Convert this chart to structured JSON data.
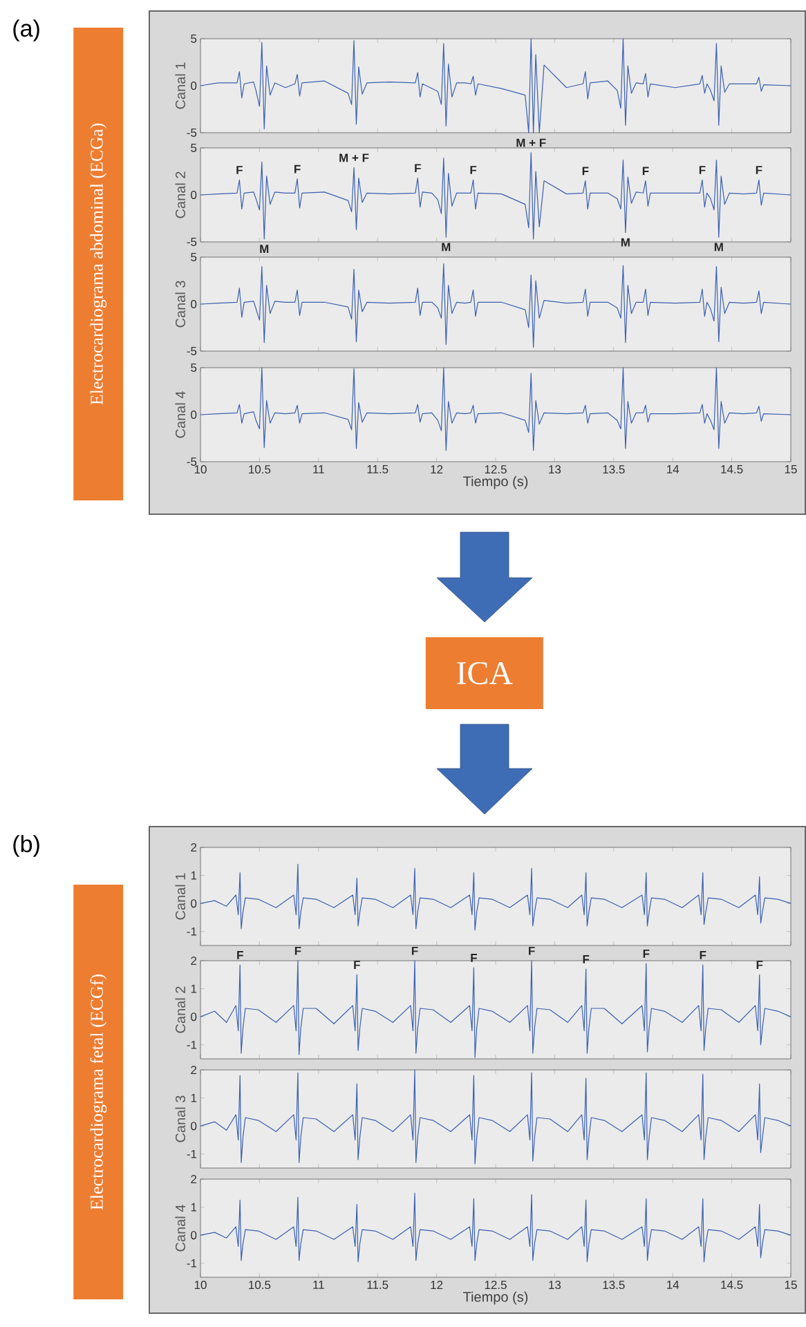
{
  "chart_data": [
    {
      "type": "line",
      "annotations": [
        "(a)",
        "Electrocardiograma abdominal (ECGa)"
      ],
      "ylabel": "Canal 1",
      "color": "#3a5fb0",
      "xlim": [
        10,
        15
      ],
      "ylim": [
        -5,
        5
      ],
      "xticks": [
        10,
        10.5,
        11,
        11.5,
        12,
        12.5,
        13,
        13.5,
        14,
        14.5,
        15
      ],
      "yticks": [
        -5,
        0,
        5
      ],
      "tick_labels": "y",
      "x": [
        10.0,
        10.15,
        10.31,
        10.33,
        10.35,
        10.37,
        10.45,
        10.47,
        10.5,
        10.52,
        10.54,
        10.56,
        10.59,
        10.63,
        10.72,
        10.8,
        10.82,
        10.84,
        10.86,
        11.05,
        11.25,
        11.28,
        11.3,
        11.32,
        11.34,
        11.37,
        11.41,
        11.6,
        11.82,
        11.84,
        11.86,
        11.88,
        11.96,
        12.01,
        12.04,
        12.06,
        12.08,
        12.1,
        12.13,
        12.17,
        12.24,
        12.29,
        12.31,
        12.33,
        12.35,
        12.55,
        12.75,
        12.78,
        12.8,
        12.82,
        12.84,
        12.87,
        12.91,
        13.1,
        13.24,
        13.26,
        13.28,
        13.3,
        13.45,
        13.53,
        13.56,
        13.58,
        13.6,
        13.62,
        13.65,
        13.69,
        13.75,
        13.77,
        13.79,
        13.81,
        14.02,
        14.23,
        14.25,
        14.27,
        14.29,
        14.32,
        14.35,
        14.37,
        14.39,
        14.41,
        14.44,
        14.48,
        14.6,
        14.71,
        14.73,
        14.75,
        14.77,
        15.0
      ],
      "values": [
        0,
        0.3,
        0.3,
        1.5,
        -1.3,
        0.2,
        0.4,
        -0.5,
        -2.2,
        4.6,
        -4.6,
        2.1,
        -1,
        0.3,
        -0.2,
        0.2,
        1.2,
        -1.1,
        0.3,
        0.5,
        -0.8,
        -2,
        4.8,
        -4.1,
        2,
        -0.9,
        0.3,
        0.4,
        0.3,
        1.4,
        -1.2,
        0.2,
        -0.3,
        -0.6,
        -2,
        4.5,
        -4.3,
        2.3,
        -1.2,
        0.3,
        0.3,
        0.2,
        1,
        -1,
        0.2,
        -0.3,
        -1,
        -5,
        5,
        -5,
        3.3,
        -5,
        2.2,
        -0.2,
        0.2,
        1.5,
        -1.4,
        0.3,
        0.5,
        -0.5,
        -2.4,
        5,
        -4.2,
        2.1,
        -0.8,
        0.3,
        0.2,
        1.3,
        -1.2,
        0.2,
        -0.2,
        0.2,
        1.1,
        -0.8,
        0.2,
        -0.5,
        -1.6,
        4.5,
        -4.2,
        2.1,
        -0.7,
        0.2,
        0.2,
        0.2,
        0.9,
        -0.6,
        0.1,
        0
      ]
    },
    {
      "type": "line",
      "ylabel": "Canal 2",
      "color": "#3a5fb0",
      "xlim": [
        10,
        15
      ],
      "ylim": [
        -5,
        5
      ],
      "xticks": [
        10,
        10.5,
        11,
        11.5,
        12,
        12.5,
        13,
        13.5,
        14,
        14.5,
        15
      ],
      "yticks": [
        -5,
        0,
        5
      ],
      "tick_labels": "y",
      "annotations": [
        {
          "text": "F",
          "x": 10.33,
          "y": 1.6
        },
        {
          "text": "F",
          "x": 10.82,
          "y": 1.7
        },
        {
          "text": "M + F",
          "x": 11.3,
          "y": 2.9
        },
        {
          "text": "F",
          "x": 11.84,
          "y": 1.8
        },
        {
          "text": "F",
          "x": 12.31,
          "y": 1.6
        },
        {
          "text": "M + F",
          "x": 12.8,
          "y": 4.5
        },
        {
          "text": "F",
          "x": 13.26,
          "y": 1.5
        },
        {
          "text": "F",
          "x": 13.77,
          "y": 1.5
        },
        {
          "text": "F",
          "x": 14.25,
          "y": 1.6
        },
        {
          "text": "F",
          "x": 14.73,
          "y": 1.6
        },
        {
          "text": "M",
          "x": 10.54,
          "y": -4.7
        },
        {
          "text": "M",
          "x": 12.08,
          "y": -4.5
        },
        {
          "text": "M",
          "x": 13.6,
          "y": -4
        },
        {
          "text": "M",
          "x": 14.39,
          "y": -4.5
        }
      ],
      "x": [
        10.0,
        10.15,
        10.31,
        10.33,
        10.35,
        10.37,
        10.45,
        10.47,
        10.5,
        10.52,
        10.54,
        10.56,
        10.59,
        10.63,
        10.72,
        10.8,
        10.82,
        10.84,
        10.86,
        11.05,
        11.25,
        11.28,
        11.3,
        11.32,
        11.34,
        11.37,
        11.41,
        11.6,
        11.82,
        11.84,
        11.86,
        11.88,
        11.96,
        12.01,
        12.04,
        12.06,
        12.08,
        12.1,
        12.13,
        12.17,
        12.24,
        12.29,
        12.31,
        12.33,
        12.35,
        12.55,
        12.75,
        12.78,
        12.8,
        12.82,
        12.84,
        12.87,
        12.91,
        13.1,
        13.24,
        13.26,
        13.28,
        13.3,
        13.45,
        13.53,
        13.56,
        13.58,
        13.6,
        13.62,
        13.65,
        13.69,
        13.75,
        13.77,
        13.79,
        13.81,
        14.02,
        14.23,
        14.25,
        14.27,
        14.29,
        14.32,
        14.35,
        14.37,
        14.39,
        14.41,
        14.44,
        14.48,
        14.6,
        14.71,
        14.73,
        14.75,
        14.77,
        15.0
      ],
      "values": [
        0,
        0.1,
        0.2,
        1.6,
        -1.5,
        0.2,
        0.3,
        -0.4,
        -1.6,
        3.5,
        -4.7,
        2,
        -1,
        0.3,
        0.2,
        0.2,
        1.7,
        -1.4,
        0.2,
        0.3,
        -0.6,
        -1.8,
        2.9,
        -3.7,
        1.8,
        -0.8,
        0.2,
        0.1,
        0.2,
        1.8,
        -1.3,
        0.3,
        0.2,
        -0.5,
        -2,
        3.9,
        -4.5,
        2.3,
        -1.2,
        0.2,
        0.2,
        0.2,
        1.6,
        -1.5,
        0.2,
        0.1,
        -1,
        -3.5,
        4.5,
        -4.7,
        2.5,
        -3.4,
        1.5,
        0.1,
        0.2,
        1.5,
        -1.5,
        0.2,
        0.2,
        -0.4,
        -1.5,
        3.7,
        -4,
        1.9,
        -0.9,
        0.3,
        0.2,
        1.5,
        -1.2,
        0.2,
        0.2,
        0.2,
        1.6,
        -1.3,
        0.2,
        -0.4,
        -1.6,
        3.7,
        -4.5,
        2,
        -1,
        0.2,
        0.1,
        0.2,
        1.6,
        -1.1,
        0.2,
        0
      ]
    },
    {
      "type": "line",
      "ylabel": "Canal 3",
      "color": "#3a5fb0",
      "xlim": [
        10,
        15
      ],
      "ylim": [
        -5,
        5
      ],
      "xticks": [
        10,
        10.5,
        11,
        11.5,
        12,
        12.5,
        13,
        13.5,
        14,
        14.5,
        15
      ],
      "yticks": [
        -5,
        0,
        5
      ],
      "tick_labels": "y",
      "x": [
        10.0,
        10.15,
        10.31,
        10.33,
        10.35,
        10.37,
        10.45,
        10.47,
        10.5,
        10.52,
        10.54,
        10.56,
        10.59,
        10.63,
        10.72,
        10.8,
        10.82,
        10.84,
        10.86,
        11.05,
        11.25,
        11.28,
        11.3,
        11.32,
        11.34,
        11.37,
        11.41,
        11.6,
        11.82,
        11.84,
        11.86,
        11.88,
        11.96,
        12.01,
        12.04,
        12.06,
        12.08,
        12.1,
        12.13,
        12.17,
        12.24,
        12.29,
        12.31,
        12.33,
        12.35,
        12.55,
        12.75,
        12.78,
        12.8,
        12.82,
        12.84,
        12.87,
        12.91,
        13.1,
        13.24,
        13.26,
        13.28,
        13.3,
        13.45,
        13.53,
        13.56,
        13.58,
        13.6,
        13.62,
        13.65,
        13.69,
        13.75,
        13.77,
        13.79,
        13.81,
        14.02,
        14.23,
        14.25,
        14.27,
        14.29,
        14.32,
        14.35,
        14.37,
        14.39,
        14.41,
        14.44,
        14.48,
        14.6,
        14.71,
        14.73,
        14.75,
        14.77,
        15.0
      ],
      "values": [
        0,
        0.1,
        0.2,
        1.7,
        -1.4,
        0.2,
        0.3,
        -0.5,
        -1.7,
        4,
        -4.1,
        2,
        -1,
        0.3,
        0.2,
        0.2,
        1.5,
        -1.2,
        0.2,
        0.2,
        -0.3,
        -1.6,
        3.7,
        -4,
        1.5,
        -0.8,
        0.2,
        0.1,
        0.2,
        1.7,
        -1.2,
        0.2,
        0.2,
        -0.4,
        -1.5,
        4.3,
        -4.3,
        2,
        -1,
        0.2,
        0.1,
        0.2,
        1.5,
        -1.3,
        0.2,
        0.2,
        -0.6,
        -2.5,
        3.1,
        -4.6,
        2.5,
        -1.5,
        0.4,
        0.1,
        0.2,
        1.6,
        -1.3,
        0.2,
        0.2,
        -0.4,
        -1.5,
        4.1,
        -4.1,
        2,
        -1,
        0.2,
        0.2,
        1.6,
        -1.2,
        0.2,
        0.1,
        0.2,
        1.6,
        -1.3,
        0.2,
        -0.5,
        -1.8,
        4,
        -4,
        1.8,
        -1,
        0.2,
        0.1,
        0.2,
        1.4,
        -1,
        0.2,
        0
      ]
    },
    {
      "type": "line",
      "annotations": [
        "ICA"
      ],
      "ylabel": "Canal 4",
      "xlabel": "Tiempo (s)",
      "color": "#3a5fb0",
      "xlim": [
        10,
        15
      ],
      "ylim": [
        -5,
        5
      ],
      "xticks": [
        10,
        10.5,
        11,
        11.5,
        12,
        12.5,
        13,
        13.5,
        14,
        14.5,
        15
      ],
      "yticks": [
        -5,
        0,
        5
      ],
      "x": [
        10.0,
        10.15,
        10.31,
        10.33,
        10.35,
        10.37,
        10.45,
        10.47,
        10.5,
        10.52,
        10.54,
        10.56,
        10.59,
        10.63,
        10.72,
        10.8,
        10.82,
        10.84,
        10.86,
        11.05,
        11.25,
        11.28,
        11.3,
        11.32,
        11.34,
        11.37,
        11.41,
        11.6,
        11.82,
        11.84,
        11.86,
        11.88,
        11.96,
        12.01,
        12.04,
        12.06,
        12.08,
        12.1,
        12.13,
        12.17,
        12.24,
        12.29,
        12.31,
        12.33,
        12.35,
        12.55,
        12.75,
        12.78,
        12.8,
        12.82,
        12.84,
        12.87,
        12.91,
        13.1,
        13.24,
        13.26,
        13.28,
        13.3,
        13.45,
        13.53,
        13.56,
        13.58,
        13.6,
        13.62,
        13.65,
        13.69,
        13.75,
        13.77,
        13.79,
        13.81,
        14.02,
        14.23,
        14.25,
        14.27,
        14.29,
        14.32,
        14.35,
        14.37,
        14.39,
        14.41,
        14.44,
        14.48,
        14.6,
        14.71,
        14.73,
        14.75,
        14.77,
        15.0
      ],
      "values": [
        0,
        0.1,
        0.2,
        1.1,
        -0.9,
        0.1,
        0.3,
        -0.6,
        -1.5,
        5,
        -3.5,
        1.5,
        -0.9,
        0.2,
        0.1,
        0.2,
        1,
        -0.9,
        0.1,
        0.2,
        -0.5,
        -1.6,
        4.9,
        -3.6,
        1.3,
        -0.8,
        0.2,
        0.1,
        0.2,
        1.1,
        -0.8,
        0.1,
        0.2,
        -0.6,
        -1.7,
        5,
        -3.8,
        1.4,
        -0.9,
        0.2,
        0.1,
        0.2,
        1,
        -0.9,
        0.1,
        0.2,
        -0.6,
        -1.9,
        4.4,
        -3.8,
        1.5,
        -1,
        0.2,
        0.1,
        0.2,
        1,
        -0.9,
        0.1,
        0.2,
        -0.6,
        -1.5,
        5,
        -3.6,
        1.4,
        -0.9,
        0.2,
        0.2,
        1,
        -0.8,
        0.1,
        0.1,
        0.2,
        1.1,
        -0.9,
        0.1,
        -0.6,
        -1.6,
        5,
        -3.6,
        1.4,
        -0.9,
        0.2,
        0.1,
        0.2,
        0.9,
        -0.7,
        0.1,
        0
      ]
    },
    {
      "type": "line",
      "annotations": [
        "(b)",
        "Electrocardiograma fetal (ECGf)"
      ],
      "ylabel": "Canal 1",
      "color": "#3a5fb0",
      "xlim": [
        10,
        15
      ],
      "ylim": [
        -1.5,
        2
      ],
      "xticks": [
        10,
        10.5,
        11,
        11.5,
        12,
        12.5,
        13,
        13.5,
        14,
        14.5,
        15
      ],
      "yticks": [
        -1,
        0,
        1,
        2
      ],
      "tick_labels": "y",
      "x": [
        10.0,
        10.12,
        10.22,
        10.3,
        10.32,
        10.335,
        10.345,
        10.36,
        10.38,
        10.49,
        10.64,
        10.79,
        10.81,
        10.825,
        10.835,
        10.85,
        10.87,
        10.98,
        11.13,
        11.29,
        11.31,
        11.325,
        11.335,
        11.35,
        11.37,
        11.48,
        11.63,
        11.78,
        11.8,
        11.815,
        11.825,
        11.84,
        11.86,
        11.97,
        12.12,
        12.28,
        12.3,
        12.315,
        12.325,
        12.34,
        12.36,
        12.47,
        12.62,
        12.77,
        12.79,
        12.805,
        12.815,
        12.83,
        12.85,
        12.96,
        13.11,
        13.23,
        13.25,
        13.265,
        13.275,
        13.29,
        13.31,
        13.42,
        13.57,
        13.74,
        13.76,
        13.775,
        13.785,
        13.8,
        13.82,
        13.93,
        14.08,
        14.22,
        14.24,
        14.255,
        14.265,
        14.28,
        14.3,
        14.41,
        14.56,
        14.7,
        14.72,
        14.735,
        14.745,
        14.76,
        14.78,
        14.89,
        15.0
      ],
      "values": [
        0,
        0.1,
        -0.1,
        0.3,
        -0.4,
        1.1,
        -0.9,
        -0.3,
        0.2,
        0.15,
        -0.15,
        0.3,
        -0.4,
        1.4,
        -0.9,
        -0.3,
        0.2,
        0.15,
        -0.15,
        0.3,
        -0.4,
        0.9,
        -0.8,
        -0.3,
        0.2,
        0.15,
        -0.15,
        0.3,
        -0.4,
        1.25,
        -0.9,
        -0.3,
        0.2,
        0.15,
        -0.15,
        0.3,
        -0.4,
        1.1,
        -0.95,
        -0.3,
        0.2,
        0.15,
        -0.15,
        0.3,
        -0.4,
        1.25,
        -0.8,
        -0.3,
        0.2,
        0.15,
        -0.15,
        0.3,
        -0.4,
        1.1,
        -0.8,
        -0.3,
        0.2,
        0.15,
        -0.15,
        0.3,
        -0.4,
        1.1,
        -0.8,
        -0.3,
        0.2,
        0.15,
        -0.15,
        0.3,
        -0.4,
        1.1,
        -0.75,
        -0.3,
        0.2,
        0.15,
        -0.15,
        0.3,
        -0.4,
        0.95,
        -0.7,
        -0.3,
        0.2,
        0.15,
        0
      ]
    },
    {
      "type": "line",
      "ylabel": "Canal 2",
      "color": "#3a5fb0",
      "xlim": [
        10,
        15
      ],
      "ylim": [
        -1.5,
        2
      ],
      "xticks": [
        10,
        10.5,
        11,
        11.5,
        12,
        12.5,
        13,
        13.5,
        14,
        14.5,
        15
      ],
      "yticks": [
        -1,
        0,
        1,
        2
      ],
      "tick_labels": "y",
      "annotations": [
        {
          "text": "F",
          "x": 10.335,
          "y": 1.85
        },
        {
          "text": "F",
          "x": 10.825,
          "y": 2
        },
        {
          "text": "F",
          "x": 11.325,
          "y": 1.5
        },
        {
          "text": "F",
          "x": 11.815,
          "y": 2
        },
        {
          "text": "F",
          "x": 12.315,
          "y": 1.75
        },
        {
          "text": "F",
          "x": 12.805,
          "y": 2
        },
        {
          "text": "F",
          "x": 13.265,
          "y": 1.7
        },
        {
          "text": "F",
          "x": 13.775,
          "y": 1.9
        },
        {
          "text": "F",
          "x": 14.255,
          "y": 1.85
        },
        {
          "text": "F",
          "x": 14.735,
          "y": 1.5
        }
      ],
      "x": [
        10.0,
        10.12,
        10.22,
        10.3,
        10.32,
        10.335,
        10.345,
        10.36,
        10.38,
        10.49,
        10.64,
        10.79,
        10.81,
        10.825,
        10.835,
        10.85,
        10.87,
        10.98,
        11.13,
        11.29,
        11.31,
        11.325,
        11.335,
        11.35,
        11.37,
        11.48,
        11.63,
        11.78,
        11.8,
        11.815,
        11.825,
        11.84,
        11.86,
        11.97,
        12.12,
        12.28,
        12.3,
        12.315,
        12.325,
        12.34,
        12.36,
        12.47,
        12.62,
        12.77,
        12.79,
        12.805,
        12.815,
        12.83,
        12.85,
        12.96,
        13.11,
        13.23,
        13.25,
        13.265,
        13.275,
        13.29,
        13.31,
        13.42,
        13.57,
        13.74,
        13.76,
        13.775,
        13.785,
        13.8,
        13.82,
        13.93,
        14.08,
        14.22,
        14.24,
        14.255,
        14.265,
        14.28,
        14.3,
        14.41,
        14.56,
        14.7,
        14.72,
        14.735,
        14.745,
        14.76,
        14.78,
        14.89,
        15.0
      ],
      "values": [
        0,
        0.2,
        -0.2,
        0.4,
        -0.5,
        1.85,
        -1.3,
        -0.4,
        0.3,
        0.25,
        -0.2,
        0.4,
        -0.5,
        2,
        -1.35,
        -0.4,
        0.3,
        0.3,
        -0.25,
        0.4,
        -0.5,
        1.5,
        -1.2,
        -0.4,
        0.3,
        0.2,
        -0.2,
        0.4,
        -0.5,
        2,
        -1.3,
        -0.4,
        0.3,
        0.25,
        -0.2,
        0.4,
        -0.5,
        1.75,
        -1.45,
        -0.4,
        0.3,
        0.2,
        -0.2,
        0.4,
        -0.5,
        2,
        -1.3,
        -0.4,
        0.3,
        0.25,
        -0.2,
        0.4,
        -0.5,
        1.7,
        -1.3,
        -0.4,
        0.3,
        0.3,
        -0.25,
        0.4,
        -0.5,
        1.9,
        -1.25,
        -0.4,
        0.3,
        0.2,
        -0.2,
        0.4,
        -0.5,
        1.85,
        -1.2,
        -0.4,
        0.3,
        0.25,
        -0.2,
        0.4,
        -0.5,
        1.5,
        -1,
        -0.4,
        0.3,
        0.2,
        0
      ]
    },
    {
      "type": "line",
      "ylabel": "Canal 3",
      "color": "#3a5fb0",
      "xlim": [
        10,
        15
      ],
      "ylim": [
        -1.5,
        2
      ],
      "xticks": [
        10,
        10.5,
        11,
        11.5,
        12,
        12.5,
        13,
        13.5,
        14,
        14.5,
        15
      ],
      "yticks": [
        -1,
        0,
        1,
        2
      ],
      "tick_labels": "y",
      "x": [
        10.0,
        10.12,
        10.22,
        10.3,
        10.32,
        10.335,
        10.345,
        10.36,
        10.38,
        10.49,
        10.64,
        10.79,
        10.81,
        10.825,
        10.835,
        10.85,
        10.87,
        10.98,
        11.13,
        11.29,
        11.31,
        11.325,
        11.335,
        11.35,
        11.37,
        11.48,
        11.63,
        11.78,
        11.8,
        11.815,
        11.825,
        11.84,
        11.86,
        11.97,
        12.12,
        12.28,
        12.3,
        12.315,
        12.325,
        12.34,
        12.36,
        12.47,
        12.62,
        12.77,
        12.79,
        12.805,
        12.815,
        12.83,
        12.85,
        12.96,
        13.11,
        13.23,
        13.25,
        13.265,
        13.275,
        13.29,
        13.31,
        13.42,
        13.57,
        13.74,
        13.76,
        13.775,
        13.785,
        13.8,
        13.82,
        13.93,
        14.08,
        14.22,
        14.24,
        14.255,
        14.265,
        14.28,
        14.3,
        14.41,
        14.56,
        14.7,
        14.72,
        14.735,
        14.745,
        14.76,
        14.78,
        14.89,
        15.0
      ],
      "values": [
        0,
        0.15,
        -0.15,
        0.4,
        -0.5,
        1.8,
        -1.3,
        -0.4,
        0.3,
        0.2,
        -0.2,
        0.4,
        -0.5,
        1.9,
        -1.3,
        -0.4,
        0.3,
        0.25,
        -0.2,
        0.4,
        -0.5,
        1.5,
        -1.2,
        -0.4,
        0.3,
        0.2,
        -0.2,
        0.4,
        -0.5,
        2,
        -1.3,
        -0.4,
        0.3,
        0.2,
        -0.2,
        0.4,
        -0.5,
        1.8,
        -1.35,
        -0.4,
        0.3,
        0.2,
        -0.2,
        0.4,
        -0.5,
        1.9,
        -1.25,
        -0.4,
        0.3,
        0.25,
        -0.2,
        0.4,
        -0.5,
        1.7,
        -1.2,
        -0.4,
        0.3,
        0.2,
        -0.2,
        0.4,
        -0.5,
        1.9,
        -1.2,
        -0.4,
        0.3,
        0.2,
        -0.2,
        0.4,
        -0.5,
        1.85,
        -1.2,
        -0.4,
        0.3,
        0.2,
        -0.2,
        0.4,
        -0.5,
        1.5,
        -0.95,
        -0.4,
        0.3,
        0.2,
        0
      ]
    },
    {
      "type": "line",
      "ylabel": "Canal 4",
      "xlabel": "Tiempo (s)",
      "color": "#3a5fb0",
      "xlim": [
        10,
        15
      ],
      "ylim": [
        -1.5,
        2
      ],
      "xticks": [
        10,
        10.5,
        11,
        11.5,
        12,
        12.5,
        13,
        13.5,
        14,
        14.5,
        15
      ],
      "yticks": [
        -1,
        0,
        1,
        2
      ],
      "x": [
        10.0,
        10.12,
        10.22,
        10.3,
        10.32,
        10.335,
        10.345,
        10.36,
        10.38,
        10.49,
        10.64,
        10.79,
        10.81,
        10.825,
        10.835,
        10.85,
        10.87,
        10.98,
        11.13,
        11.29,
        11.31,
        11.325,
        11.335,
        11.35,
        11.37,
        11.48,
        11.63,
        11.78,
        11.8,
        11.815,
        11.825,
        11.84,
        11.86,
        11.97,
        12.12,
        12.28,
        12.3,
        12.315,
        12.325,
        12.34,
        12.36,
        12.47,
        12.62,
        12.77,
        12.79,
        12.805,
        12.815,
        12.83,
        12.85,
        12.96,
        13.11,
        13.23,
        13.25,
        13.265,
        13.275,
        13.29,
        13.31,
        13.42,
        13.57,
        13.74,
        13.76,
        13.775,
        13.785,
        13.8,
        13.82,
        13.93,
        14.08,
        14.22,
        14.24,
        14.255,
        14.265,
        14.28,
        14.3,
        14.41,
        14.56,
        14.7,
        14.72,
        14.735,
        14.745,
        14.76,
        14.78,
        14.89,
        15.0
      ],
      "values": [
        0,
        0.1,
        -0.1,
        0.3,
        -0.4,
        1.25,
        -0.9,
        -0.3,
        0.2,
        0.15,
        -0.15,
        0.3,
        -0.4,
        1.35,
        -0.9,
        -0.3,
        0.2,
        0.15,
        -0.15,
        0.3,
        -0.4,
        1.1,
        -0.95,
        -0.3,
        0.2,
        0.15,
        -0.15,
        0.3,
        -0.4,
        1.5,
        -0.9,
        -0.3,
        0.2,
        0.15,
        -0.15,
        0.3,
        -0.4,
        1.3,
        -0.9,
        -0.3,
        0.2,
        0.15,
        -0.15,
        0.3,
        -0.4,
        1.45,
        -0.9,
        -0.3,
        0.2,
        0.15,
        -0.15,
        0.3,
        -0.4,
        1.25,
        -0.95,
        -0.3,
        0.2,
        0.15,
        -0.15,
        0.3,
        -0.4,
        1.3,
        -0.9,
        -0.3,
        0.2,
        0.15,
        -0.15,
        0.3,
        -0.4,
        1.3,
        -0.95,
        -0.3,
        0.2,
        0.15,
        -0.15,
        0.3,
        -0.4,
        1.1,
        -0.8,
        -0.3,
        0.2,
        0.15,
        0
      ]
    }
  ]
}
